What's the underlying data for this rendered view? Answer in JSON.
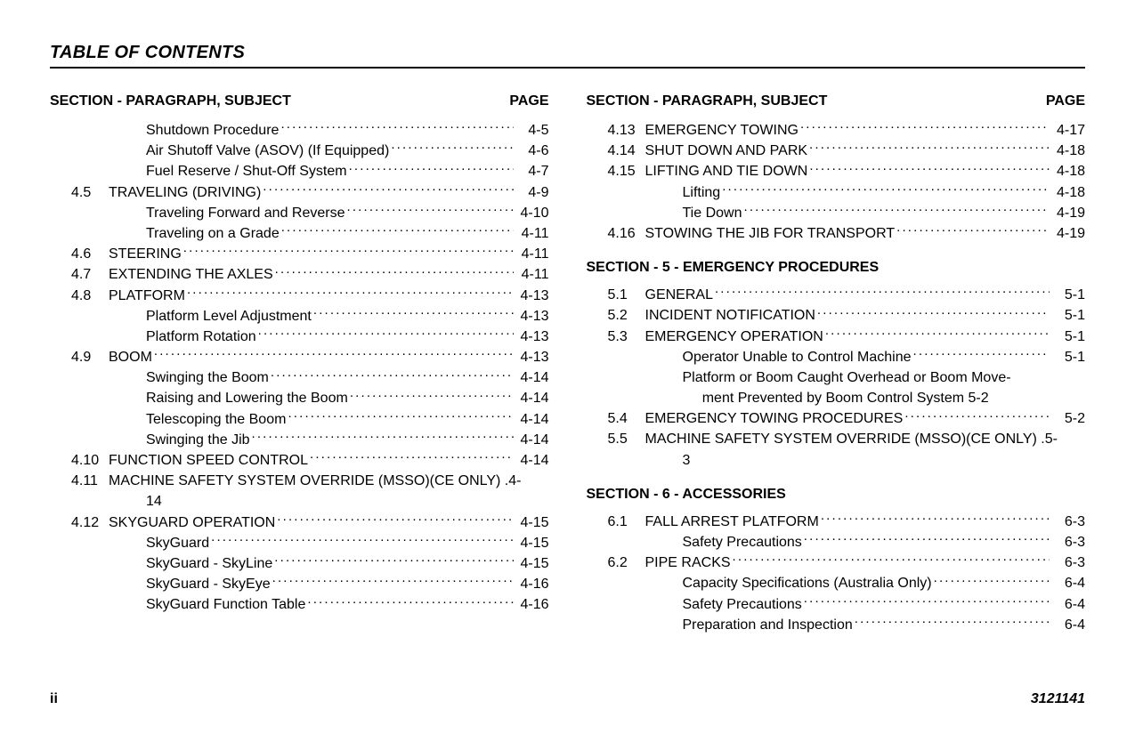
{
  "title": "TABLE OF CONTENTS",
  "colHeaderLeft": "SECTION - PARAGRAPH, SUBJECT",
  "colHeaderRight": "PAGE",
  "leftColumn": [
    {
      "type": "entry",
      "indent": 1,
      "num": "",
      "label": "Shutdown Procedure",
      "page": "4-5"
    },
    {
      "type": "entry",
      "indent": 1,
      "num": "",
      "label": "Air Shutoff Valve (ASOV) (If Equipped)",
      "page": "4-6"
    },
    {
      "type": "entry",
      "indent": 1,
      "num": "",
      "label": "Fuel Reserve / Shut-Off System",
      "page": "4-7"
    },
    {
      "type": "entry",
      "indent": 0,
      "num": "4.5",
      "label": "TRAVELING (DRIVING)",
      "page": "4-9"
    },
    {
      "type": "entry",
      "indent": 1,
      "num": "",
      "label": "Traveling Forward and Reverse",
      "page": "4-10"
    },
    {
      "type": "entry",
      "indent": 1,
      "num": "",
      "label": "Traveling on a Grade",
      "page": "4-11"
    },
    {
      "type": "entry",
      "indent": 0,
      "num": "4.6",
      "label": "STEERING",
      "page": "4-11"
    },
    {
      "type": "entry",
      "indent": 0,
      "num": "4.7",
      "label": "EXTENDING THE AXLES",
      "page": "4-11"
    },
    {
      "type": "entry",
      "indent": 0,
      "num": "4.8",
      "label": "PLATFORM",
      "page": "4-13"
    },
    {
      "type": "entry",
      "indent": 1,
      "num": "",
      "label": "Platform Level Adjustment",
      "page": "4-13"
    },
    {
      "type": "entry",
      "indent": 1,
      "num": "",
      "label": "Platform Rotation",
      "page": "4-13"
    },
    {
      "type": "entry",
      "indent": 0,
      "num": "4.9",
      "label": "BOOM",
      "page": "4-13"
    },
    {
      "type": "entry",
      "indent": 1,
      "num": "",
      "label": "Swinging the Boom",
      "page": "4-14"
    },
    {
      "type": "entry",
      "indent": 1,
      "num": "",
      "label": "Raising and Lowering the Boom",
      "page": "4-14"
    },
    {
      "type": "entry",
      "indent": 1,
      "num": "",
      "label": "Telescoping the Boom",
      "page": "4-14"
    },
    {
      "type": "entry",
      "indent": 1,
      "num": "",
      "label": "Swinging the Jib",
      "page": "4-14"
    },
    {
      "type": "entry",
      "indent": 0,
      "num": "4.10",
      "label": "FUNCTION SPEED CONTROL",
      "page": "4-14"
    },
    {
      "type": "entry",
      "indent": 0,
      "num": "4.11",
      "label": "MACHINE SAFETY SYSTEM OVERRIDE (MSSO)(CE ONLY) .4-",
      "page": "",
      "noleader": true
    },
    {
      "type": "cont",
      "label": "14"
    },
    {
      "type": "entry",
      "indent": 0,
      "num": "4.12",
      "label": "SKYGUARD OPERATION",
      "page": "4-15"
    },
    {
      "type": "entry",
      "indent": 1,
      "num": "",
      "label": "SkyGuard",
      "page": "4-15"
    },
    {
      "type": "entry",
      "indent": 1,
      "num": "",
      "label": "SkyGuard - SkyLine",
      "page": "4-15"
    },
    {
      "type": "entry",
      "indent": 1,
      "num": "",
      "label": "SkyGuard - SkyEye",
      "page": "4-16"
    },
    {
      "type": "entry",
      "indent": 1,
      "num": "",
      "label": "SkyGuard Function Table",
      "page": "4-16"
    }
  ],
  "rightColumn": [
    {
      "type": "entry",
      "indent": 0,
      "num": "4.13",
      "label": "EMERGENCY TOWING",
      "page": "4-17"
    },
    {
      "type": "entry",
      "indent": 0,
      "num": "4.14",
      "label": "SHUT DOWN AND PARK",
      "page": "4-18"
    },
    {
      "type": "entry",
      "indent": 0,
      "num": "4.15",
      "label": "LIFTING AND TIE DOWN",
      "page": "4-18"
    },
    {
      "type": "entry",
      "indent": 1,
      "num": "",
      "label": "Lifting",
      "page": "4-18"
    },
    {
      "type": "entry",
      "indent": 1,
      "num": "",
      "label": "Tie Down",
      "page": "4-19"
    },
    {
      "type": "entry",
      "indent": 0,
      "num": "4.16",
      "label": "STOWING THE JIB FOR TRANSPORT",
      "page": "4-19"
    },
    {
      "type": "section",
      "label": "SECTION - 5 - EMERGENCY PROCEDURES"
    },
    {
      "type": "entry",
      "indent": 0,
      "num": "5.1",
      "label": "GENERAL",
      "page": "5-1"
    },
    {
      "type": "entry",
      "indent": 0,
      "num": "5.2",
      "label": "INCIDENT NOTIFICATION",
      "page": "5-1"
    },
    {
      "type": "entry",
      "indent": 0,
      "num": "5.3",
      "label": "EMERGENCY OPERATION",
      "page": "5-1"
    },
    {
      "type": "entry",
      "indent": 1,
      "num": "",
      "label": "Operator Unable to Control Machine",
      "page": "5-1"
    },
    {
      "type": "entry",
      "indent": 1,
      "num": "",
      "label": "Platform or Boom Caught Overhead or Boom Move-",
      "page": "",
      "noleader": true
    },
    {
      "type": "cont",
      "label": "     ment Prevented by Boom Control System 5-2"
    },
    {
      "type": "entry",
      "indent": 0,
      "num": "5.4",
      "label": "EMERGENCY TOWING PROCEDURES",
      "page": "5-2"
    },
    {
      "type": "entry",
      "indent": 0,
      "num": "5.5",
      "label": "MACHINE SAFETY SYSTEM OVERRIDE (MSSO)(CE ONLY) .5-",
      "page": "",
      "noleader": true
    },
    {
      "type": "cont",
      "label": "3"
    },
    {
      "type": "section",
      "label": "SECTION - 6 - ACCESSORIES"
    },
    {
      "type": "entry",
      "indent": 0,
      "num": "6.1",
      "label": "FALL ARREST PLATFORM",
      "page": "6-3"
    },
    {
      "type": "entry",
      "indent": 1,
      "num": "",
      "label": "Safety Precautions",
      "page": "6-3"
    },
    {
      "type": "entry",
      "indent": 0,
      "num": "6.2",
      "label": "PIPE RACKS",
      "page": "6-3"
    },
    {
      "type": "entry",
      "indent": 1,
      "num": "",
      "label": "Capacity Specifications (Australia Only)",
      "page": "6-4"
    },
    {
      "type": "entry",
      "indent": 1,
      "num": "",
      "label": "Safety Precautions",
      "page": "6-4"
    },
    {
      "type": "entry",
      "indent": 1,
      "num": "",
      "label": "Preparation and Inspection",
      "page": "6-4"
    }
  ],
  "footer": {
    "pageNum": "ii",
    "docNum": "3121141"
  }
}
